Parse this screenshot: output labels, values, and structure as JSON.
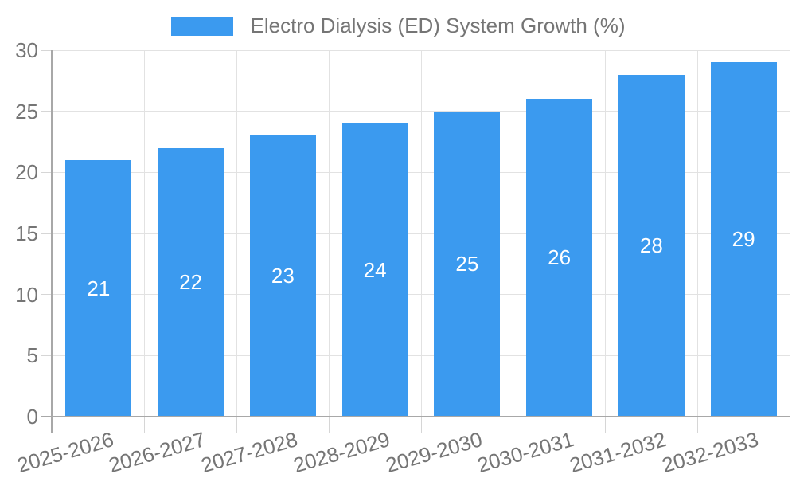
{
  "chart_data": {
    "type": "bar",
    "title": "Electro Dialysis (ED) System Growth (%)",
    "legend_position": "top",
    "categories": [
      "2025-2026",
      "2026-2027",
      "2027-2028",
      "2028-2029",
      "2029-2030",
      "2030-2031",
      "2031-2032",
      "2032-2033"
    ],
    "values": [
      21,
      22,
      23,
      24,
      25,
      26,
      28,
      29
    ],
    "xlabel": "",
    "ylabel": "",
    "ylim": [
      0,
      30
    ],
    "yticks": [
      0,
      5,
      10,
      15,
      20,
      25,
      30
    ],
    "grid": true,
    "colors": {
      "bar": "#3B9AEF",
      "grid": "#E2E2E2",
      "tick": "#D6D6D6",
      "axis": "#A8A8A8",
      "text": "#757575",
      "value_label": "#FFFFFF"
    }
  }
}
